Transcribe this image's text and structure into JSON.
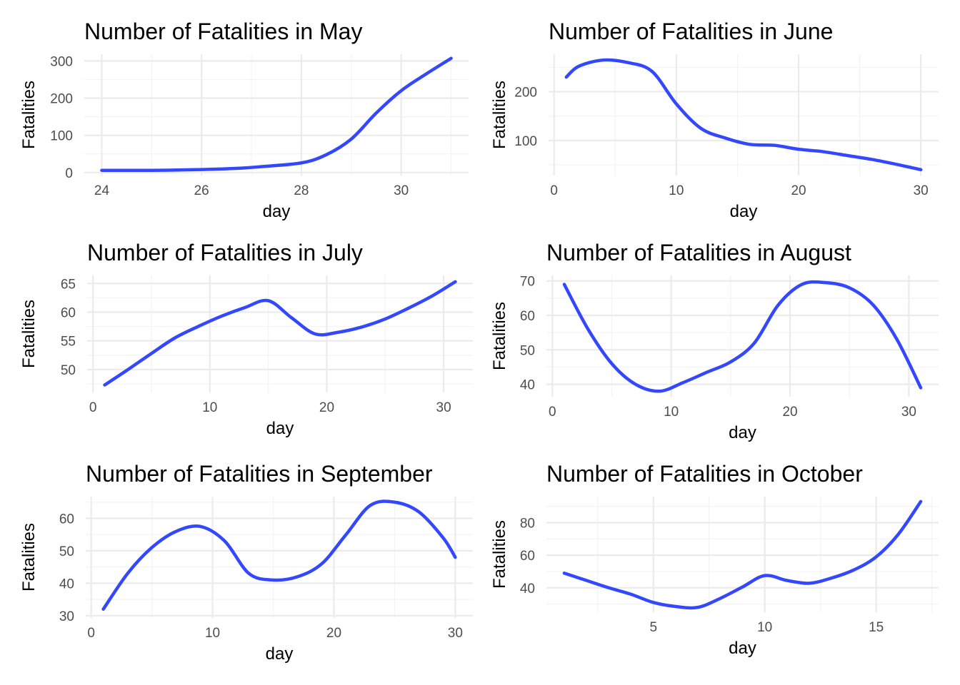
{
  "chart_data": [
    {
      "type": "line",
      "title": "Number of Fatalities in May",
      "xlabel": "day",
      "ylabel": "Fatalities",
      "xlim": [
        23.65,
        31.35
      ],
      "ylim": [
        -8,
        318
      ],
      "xticks": [
        24,
        26,
        28,
        30
      ],
      "yticks": [
        0,
        100,
        200,
        300
      ],
      "grid": true,
      "color": "#3347ff",
      "x": [
        24,
        25,
        26,
        26.8,
        27.2,
        28,
        28.5,
        29,
        29.5,
        30,
        30.5,
        31
      ],
      "y": [
        6,
        6,
        8,
        12,
        16,
        26,
        48,
        90,
        160,
        220,
        265,
        307
      ]
    },
    {
      "type": "line",
      "title": "Number of Fatalities in June",
      "xlabel": "day",
      "ylabel": "Fatalities",
      "xlim": [
        -0.45,
        31.45
      ],
      "ylim": [
        28,
        277
      ],
      "xticks": [
        0,
        10,
        20,
        30
      ],
      "yticks": [
        100,
        200
      ],
      "grid": true,
      "color": "#3347ff",
      "x": [
        1,
        2,
        4,
        6,
        8,
        10,
        12,
        14,
        16,
        18,
        20,
        22,
        24,
        26,
        28,
        30
      ],
      "y": [
        230,
        252,
        265,
        260,
        242,
        175,
        125,
        105,
        92,
        90,
        82,
        77,
        69,
        61,
        51,
        40
      ]
    },
    {
      "type": "line",
      "title": "Number of Fatalities in July",
      "xlabel": "day",
      "ylabel": "Fatalities",
      "xlim": [
        -0.5,
        32.5
      ],
      "ylim": [
        46,
        66.4
      ],
      "xticks": [
        0,
        10,
        20,
        30
      ],
      "yticks": [
        50,
        55,
        60,
        65
      ],
      "grid": true,
      "color": "#3347ff",
      "x": [
        1,
        3,
        5,
        7,
        9,
        11,
        13,
        15,
        17,
        19,
        21,
        23,
        25,
        27,
        29,
        31
      ],
      "y": [
        47.3,
        50.0,
        52.8,
        55.5,
        57.5,
        59.3,
        60.8,
        62.0,
        59.0,
        56.2,
        56.5,
        57.4,
        58.8,
        60.7,
        62.8,
        65.3
      ]
    },
    {
      "type": "line",
      "title": "Number of Fatalities in August",
      "xlabel": "day",
      "ylabel": "Fatalities",
      "xlim": [
        -0.5,
        32.5
      ],
      "ylim": [
        36.4,
        71.6
      ],
      "xticks": [
        0,
        10,
        20,
        30
      ],
      "yticks": [
        40,
        50,
        60,
        70
      ],
      "grid": true,
      "color": "#3347ff",
      "x": [
        1,
        3,
        5,
        7,
        9,
        11,
        13,
        15,
        17,
        19,
        21,
        23,
        25,
        27,
        29,
        31
      ],
      "y": [
        69,
        56,
        46,
        40,
        38,
        40.5,
        43.5,
        46.5,
        52,
        63,
        69,
        69.5,
        68,
        63,
        53,
        39
      ]
    },
    {
      "type": "line",
      "title": "Number of Fatalities in September",
      "xlabel": "day",
      "ylabel": "Fatalities",
      "xlim": [
        -0.45,
        31.45
      ],
      "ylim": [
        29.3,
        66.7
      ],
      "xticks": [
        0,
        10,
        20,
        30
      ],
      "yticks": [
        30,
        40,
        50,
        60
      ],
      "grid": true,
      "color": "#3347ff",
      "x": [
        1,
        3,
        5,
        7,
        9,
        11,
        13,
        15,
        17,
        19,
        21,
        23,
        25,
        27,
        29,
        30
      ],
      "y": [
        32,
        43,
        51,
        56,
        57.5,
        53,
        43,
        41,
        42,
        46,
        55,
        64,
        65,
        62,
        54,
        48
      ]
    },
    {
      "type": "line",
      "title": "Number of Fatalities in October",
      "xlabel": "day",
      "ylabel": "Fatalities",
      "xlim": [
        0.2,
        17.8
      ],
      "ylim": [
        25,
        96
      ],
      "xticks": [
        5,
        10,
        15
      ],
      "yticks": [
        40,
        60,
        80
      ],
      "grid": true,
      "color": "#3347ff",
      "x": [
        1,
        2,
        3,
        4,
        5,
        6,
        7,
        8,
        9,
        10,
        11,
        12,
        13,
        14,
        15,
        16,
        17
      ],
      "y": [
        49,
        44.5,
        40,
        36,
        31,
        28.5,
        28,
        33.5,
        40.5,
        47.5,
        44.5,
        42.8,
        46,
        51,
        59,
        73,
        93
      ]
    }
  ]
}
